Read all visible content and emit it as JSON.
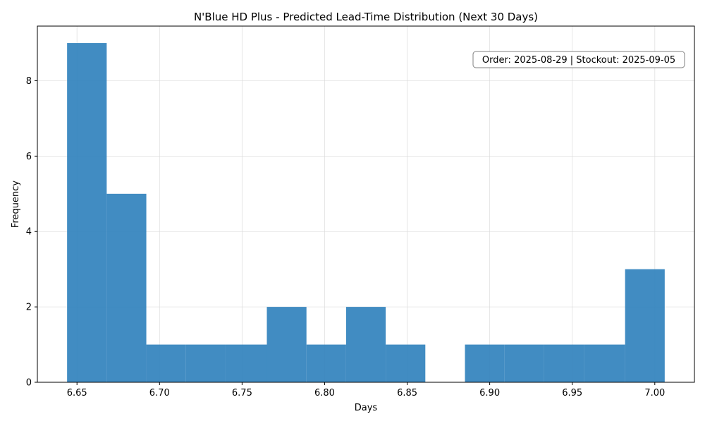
{
  "chart_data": {
    "type": "bar",
    "title": "N'Blue HD Plus - Predicted Lead-Time Distribution (Next 30 Days)",
    "xlabel": "Days",
    "ylabel": "Frequency",
    "xlim": [
      6.626,
      7.024
    ],
    "ylim": [
      0,
      9.45
    ],
    "xticks": [
      6.65,
      6.7,
      6.75,
      6.8,
      6.85,
      6.9,
      6.95,
      7.0
    ],
    "xtick_labels": [
      "6.65",
      "6.70",
      "6.75",
      "6.80",
      "6.85",
      "6.90",
      "6.95",
      "7.00"
    ],
    "yticks": [
      0,
      2,
      4,
      6,
      8
    ],
    "ytick_labels": [
      "0",
      "2",
      "4",
      "6",
      "8"
    ],
    "grid": true,
    "bar_color": "#3182bd",
    "bins": [
      {
        "start": 6.644,
        "end": 6.668,
        "count": 9
      },
      {
        "start": 6.668,
        "end": 6.692,
        "count": 5
      },
      {
        "start": 6.692,
        "end": 6.716,
        "count": 1
      },
      {
        "start": 6.716,
        "end": 6.74,
        "count": 1
      },
      {
        "start": 6.74,
        "end": 6.765,
        "count": 1
      },
      {
        "start": 6.765,
        "end": 6.789,
        "count": 2
      },
      {
        "start": 6.789,
        "end": 6.813,
        "count": 1
      },
      {
        "start": 6.813,
        "end": 6.837,
        "count": 2
      },
      {
        "start": 6.837,
        "end": 6.861,
        "count": 1
      },
      {
        "start": 6.861,
        "end": 6.885,
        "count": 0
      },
      {
        "start": 6.885,
        "end": 6.909,
        "count": 1
      },
      {
        "start": 6.909,
        "end": 6.933,
        "count": 1
      },
      {
        "start": 6.933,
        "end": 6.957,
        "count": 1
      },
      {
        "start": 6.957,
        "end": 6.982,
        "count": 1
      },
      {
        "start": 6.982,
        "end": 7.006,
        "count": 3
      }
    ],
    "annotation": "Order: 2025-08-29 | Stockout: 2025-09-05"
  }
}
